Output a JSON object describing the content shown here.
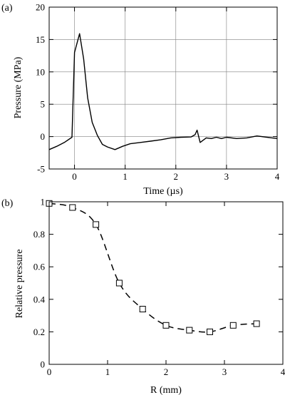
{
  "chart_data": [
    {
      "type": "line",
      "panel_label": "(a)",
      "xlabel": "Time (µs)",
      "ylabel": "Pressure (MPa)",
      "xlim": [
        -0.5,
        4
      ],
      "ylim": [
        -5,
        20
      ],
      "xticks": [
        0,
        1,
        2,
        3,
        4
      ],
      "yticks": [
        -5,
        0,
        5,
        10,
        15,
        20
      ],
      "grid": true,
      "series": [
        {
          "x": [
            -0.5,
            -0.35,
            -0.2,
            -0.05,
            0.0,
            0.1,
            0.18,
            0.26,
            0.35,
            0.45,
            0.55,
            0.65,
            0.8,
            0.95,
            1.1,
            1.3,
            1.5,
            1.7,
            1.9,
            2.1,
            2.3,
            2.38,
            2.42,
            2.48,
            2.6,
            2.7,
            2.8,
            2.9,
            3.0,
            3.2,
            3.4,
            3.6,
            3.8,
            4.0
          ],
          "y": [
            -2.0,
            -1.5,
            -0.9,
            -0.1,
            13.0,
            15.9,
            12.0,
            6.0,
            2.2,
            0.2,
            -1.2,
            -1.6,
            -2.0,
            -1.5,
            -1.1,
            -0.9,
            -0.7,
            -0.5,
            -0.2,
            -0.1,
            -0.05,
            0.3,
            1.0,
            -0.9,
            -0.2,
            -0.3,
            -0.1,
            -0.3,
            -0.1,
            -0.3,
            -0.2,
            0.1,
            -0.1,
            -0.3
          ]
        }
      ]
    },
    {
      "type": "line",
      "panel_label": "(b)",
      "xlabel": "R (mm)",
      "ylabel": "Relative pressure",
      "xlim": [
        0,
        4
      ],
      "ylim": [
        0,
        1
      ],
      "xticks": [
        0,
        1,
        2,
        3,
        4
      ],
      "yticks": [
        0,
        0.2,
        0.4,
        0.6,
        0.8,
        1
      ],
      "grid": false,
      "series": [
        {
          "style": "dashed line with open square markers",
          "x": [
            0.0,
            0.4,
            0.8,
            1.2,
            1.6,
            2.0,
            2.4,
            2.75,
            3.15,
            3.55
          ],
          "y": [
            0.99,
            0.965,
            0.86,
            0.5,
            0.34,
            0.24,
            0.21,
            0.2,
            0.24,
            0.25
          ]
        }
      ]
    }
  ]
}
